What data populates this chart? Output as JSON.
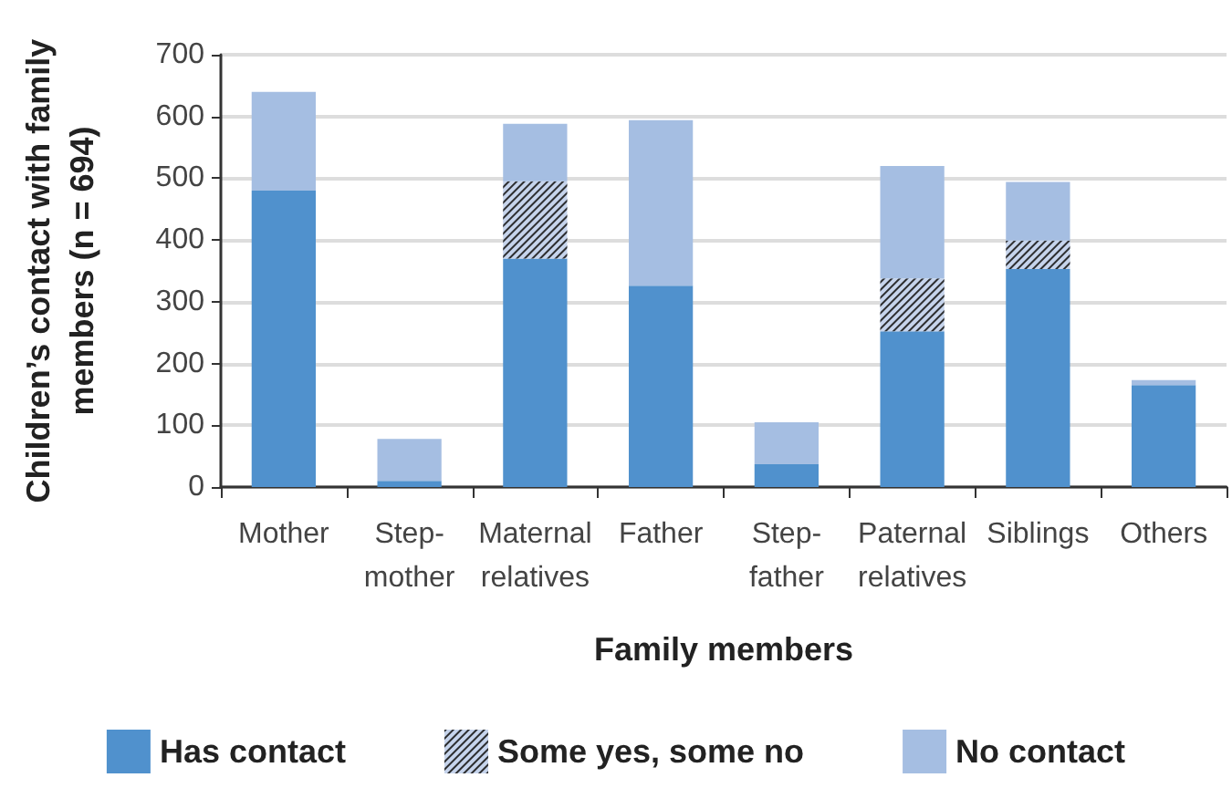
{
  "chart_data": {
    "type": "bar",
    "categories": [
      "Mother",
      "Step-mother",
      "Maternal relatives",
      "Father",
      "Step-father",
      "Paternal relatives",
      "Siblings",
      "Others"
    ],
    "series": [
      {
        "name": "Has contact",
        "color": "#5091cd",
        "values": [
          480,
          10,
          370,
          326,
          37,
          252,
          353,
          165
        ]
      },
      {
        "name": "Some yes, some no",
        "color": "#c6d4ec",
        "values": [
          null,
          null,
          125,
          null,
          null,
          86,
          46,
          null
        ]
      },
      {
        "name": "No contact",
        "color": "#a5bee2",
        "values": [
          160,
          68,
          93,
          268,
          68,
          182,
          95,
          8
        ]
      }
    ],
    "stacked": true,
    "xlabel": "Family members",
    "ylabel": "Children’s contact with family members (n = 694)",
    "ylim": [
      0,
      700
    ],
    "yticks": [
      0,
      100,
      200,
      300,
      400,
      500,
      600,
      700
    ],
    "grid": "y",
    "legend": "bottom"
  }
}
